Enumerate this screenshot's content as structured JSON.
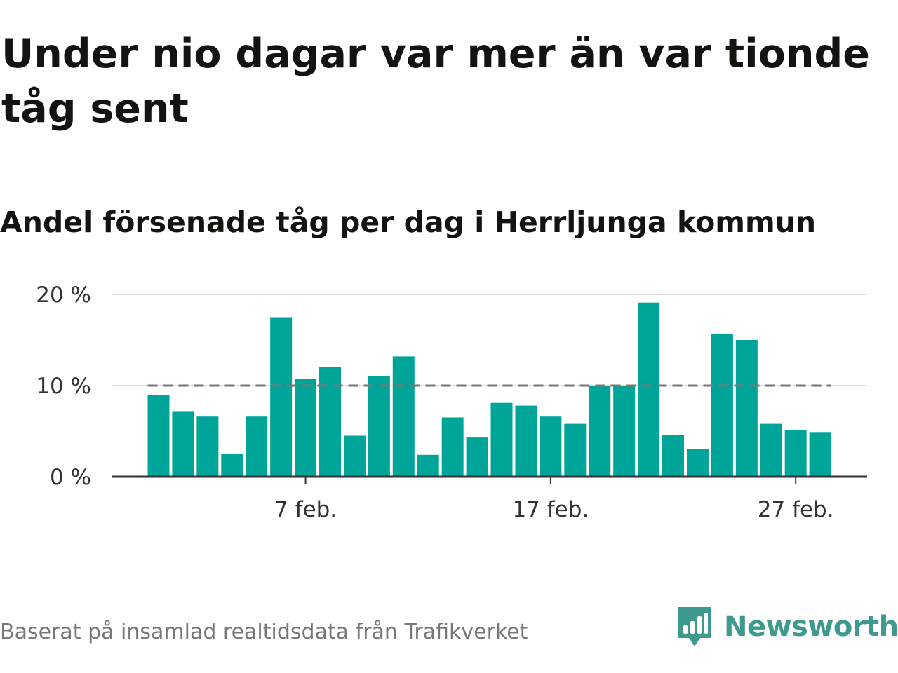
{
  "header": {
    "title": "Under nio dagar var mer än var tionde tåg sent",
    "subtitle": "Andel försenade tåg per dag i Herrljunga kommun"
  },
  "chart_data": {
    "type": "bar",
    "x": [
      "2023-02-01",
      "2023-02-02",
      "2023-02-03",
      "2023-02-04",
      "2023-02-05",
      "2023-02-06",
      "2023-02-07",
      "2023-02-08",
      "2023-02-09",
      "2023-02-10",
      "2023-02-11",
      "2023-02-12",
      "2023-02-13",
      "2023-02-14",
      "2023-02-15",
      "2023-02-16",
      "2023-02-17",
      "2023-02-18",
      "2023-02-19",
      "2023-02-20",
      "2023-02-21",
      "2023-02-22",
      "2023-02-23",
      "2023-02-24",
      "2023-02-25",
      "2023-02-26",
      "2023-02-27",
      "2023-02-28"
    ],
    "values": [
      9.0,
      7.2,
      6.6,
      2.5,
      6.6,
      17.5,
      10.7,
      12.0,
      4.5,
      11.0,
      13.2,
      2.4,
      6.5,
      4.3,
      8.1,
      7.8,
      6.6,
      5.8,
      10.0,
      10.0,
      19.1,
      4.6,
      3.0,
      15.7,
      15.0,
      5.8,
      5.1,
      4.9
    ],
    "reference_line": 10,
    "ylim": [
      0,
      20
    ],
    "yticks": [
      {
        "value": 0,
        "label": "0 %"
      },
      {
        "value": 10,
        "label": "10 %"
      },
      {
        "value": 20,
        "label": "20 %"
      }
    ],
    "xticks": [
      {
        "date": "2023-02-07",
        "label": "7 feb."
      },
      {
        "date": "2023-02-17",
        "label": "17 feb."
      },
      {
        "date": "2023-02-27",
        "label": "27 feb."
      }
    ],
    "colors": {
      "bar": "#00a59a",
      "reference_line": "#777777",
      "grid": "#dddddd",
      "axis": "#333333"
    },
    "grid": true,
    "legend": "none"
  },
  "footer": {
    "source": "Baserat på insamlad realtidsdata från Trafikverket",
    "brand": "Newsworthy",
    "brand_icon": "bar-chart-badge-icon",
    "brand_color": "#3e9a8e"
  }
}
